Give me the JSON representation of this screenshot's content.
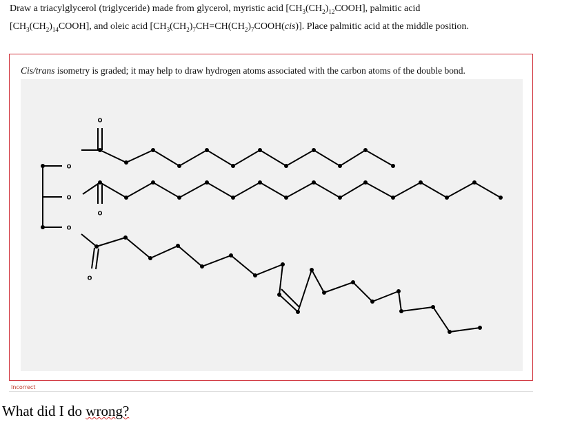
{
  "question": {
    "lines": [
      [
        [
          "Draw a triacylglycerol (triglyceride) made from glycerol, myristic acid ",
          "n"
        ],
        [
          "[CH",
          "n"
        ],
        [
          "3",
          "sub"
        ],
        [
          "(CH",
          "n"
        ],
        [
          "2",
          "sub"
        ],
        [
          ")",
          "n"
        ],
        [
          "12",
          "sub"
        ],
        [
          "COOH]",
          "n"
        ],
        [
          ", palmitic acid",
          "n"
        ]
      ],
      [
        [
          "[CH",
          "n"
        ],
        [
          "3",
          "sub"
        ],
        [
          "(CH",
          "n"
        ],
        [
          "2",
          "sub"
        ],
        [
          ")",
          "n"
        ],
        [
          "14",
          "sub"
        ],
        [
          "COOH]",
          "n"
        ],
        [
          ", and oleic acid ",
          "n"
        ],
        [
          "[CH",
          "n"
        ],
        [
          "3",
          "sub"
        ],
        [
          "(CH",
          "n"
        ],
        [
          "2",
          "sub"
        ],
        [
          ")",
          "n"
        ],
        [
          "7",
          "sub"
        ],
        [
          "CH=CH(CH",
          "n"
        ],
        [
          "2",
          "sub"
        ],
        [
          ")",
          "n"
        ],
        [
          "7",
          "sub"
        ],
        [
          "COOH(",
          "n"
        ],
        [
          "cis",
          "i"
        ],
        [
          ")]",
          "n"
        ],
        [
          ". Place palmitic acid at the middle position.",
          "n"
        ]
      ]
    ]
  },
  "panel": {
    "hint": [
      [
        "Cis/trans",
        "i"
      ],
      [
        " isometry is graded; it may help to draw hydrogen atoms associated with the carbon atoms of the double bond.",
        "n"
      ]
    ],
    "atoms": [
      "O",
      "O",
      "O",
      "O",
      "O",
      "O"
    ],
    "status": "Incorrect"
  },
  "comment": [
    [
      "What did I do ",
      "n"
    ],
    [
      "wrong?",
      "spell"
    ]
  ]
}
